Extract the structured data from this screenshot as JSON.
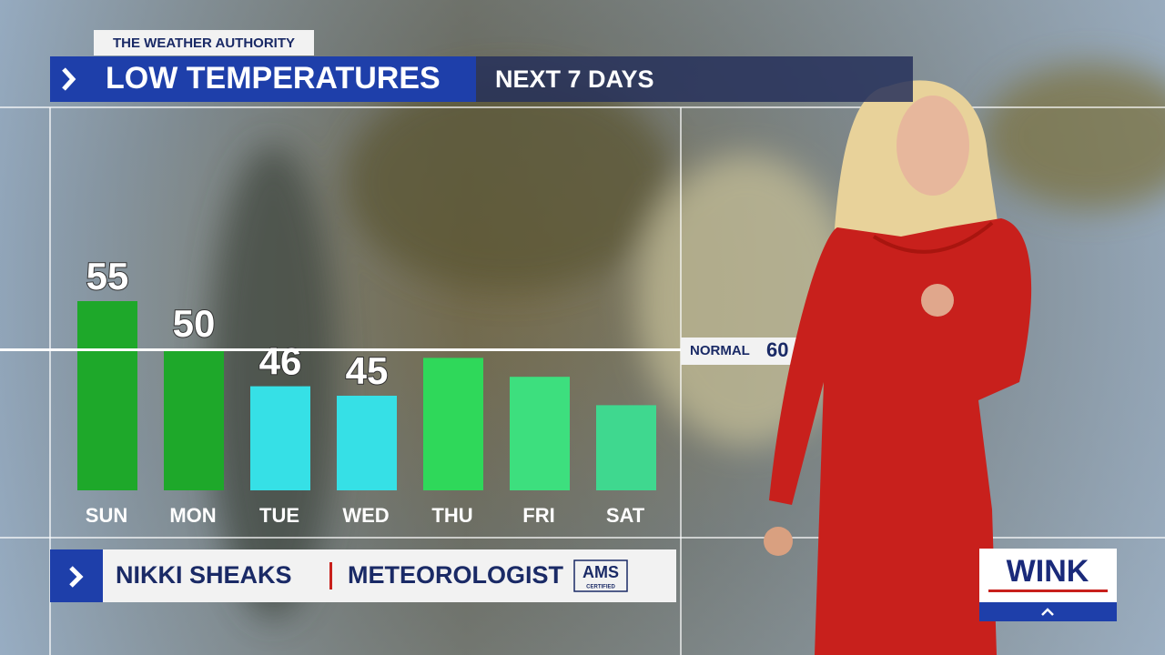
{
  "brand": "THE WEATHER AUTHORITY",
  "chart_data": {
    "type": "bar",
    "title": "LOW TEMPERATURES",
    "subtitle": "NEXT 7 DAYS",
    "categories": [
      "SUN",
      "MON",
      "TUE",
      "WED",
      "THU",
      "FRI",
      "SAT"
    ],
    "values": [
      55,
      50,
      46,
      45,
      49,
      47,
      44
    ],
    "value_labels": [
      "55",
      "50",
      "46",
      "45",
      null,
      null,
      null
    ],
    "colors": [
      "#1ea82a",
      "#1ea82a",
      "#36e0e6",
      "#36e0e6",
      "#2fd85a",
      "#3ddf7e",
      "#3fd88f"
    ],
    "ylim": [
      35,
      60
    ],
    "normal": {
      "label": "NORMAL",
      "value": 60
    }
  },
  "lower_third": {
    "name": "NIKKI SHEAKS",
    "role": "METEOROLOGIST",
    "badge": "AMS",
    "badge_sub": "CERTIFIED"
  },
  "logo": "WINK"
}
